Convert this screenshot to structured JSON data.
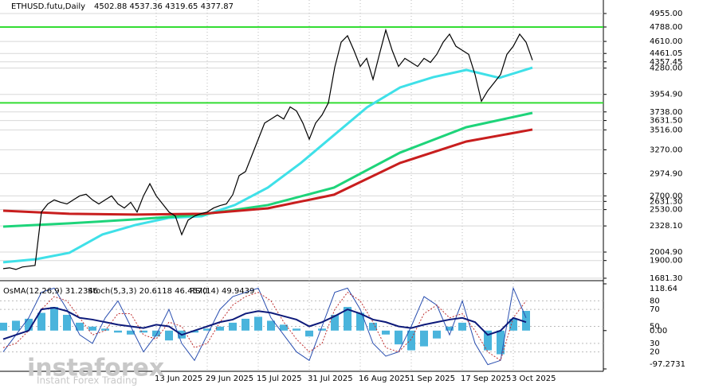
{
  "chart_data": [
    {
      "type": "line",
      "title": "ETHUSD.futu,Daily",
      "subtitle": "4502.88 4537.36 4319.65 4377.87",
      "categories": [
        null,
        null,
        null,
        null,
        null,
        null,
        null,
        null,
        null,
        null,
        null,
        null,
        null,
        null,
        null,
        null,
        null,
        null,
        null,
        null,
        null,
        null,
        null,
        null,
        "13 Jun 2025",
        null,
        null,
        null,
        null,
        null,
        null,
        null,
        "29 Jun 2025",
        null,
        null,
        null,
        null,
        null,
        null,
        null,
        "15 Jul 2025",
        null,
        null,
        null,
        null,
        null,
        null,
        null,
        "31 Jul 2025",
        null,
        null,
        null,
        null,
        null,
        null,
        null,
        "16 Aug 2025",
        null,
        null,
        null,
        null,
        null,
        null,
        null,
        "1 Sep 2025",
        null,
        null,
        null,
        null,
        null,
        null,
        null,
        "17 Sep 2025",
        null,
        null,
        null,
        null,
        null,
        null,
        null,
        "3 Oct 2025",
        null,
        null,
        null
      ],
      "series": [
        {
          "color": "#000000",
          "values": [
            1800,
            1810,
            1790,
            1820,
            1830,
            1840,
            2500,
            2600,
            2650,
            2620,
            2600,
            2650,
            2700,
            2720,
            2650,
            2600,
            2650,
            2700,
            2600,
            2550,
            2620,
            2500,
            2700,
            2850,
            2700,
            2600,
            2500,
            2450,
            2220,
            2400,
            2450,
            2480,
            2500,
            2550,
            2580,
            2600,
            2714,
            2950,
            3000,
            3200,
            3400,
            3600,
            3650,
            3700,
            3650,
            3800,
            3750,
            3600,
            3400,
            3600,
            3700,
            3850,
            4290,
            4600,
            4680,
            4500,
            4300,
            4400,
            4140,
            4450,
            4750,
            4500,
            4300,
            4400,
            4350,
            4300,
            4400,
            4350,
            4450,
            4600,
            4700,
            4550,
            4500,
            4450,
            4200,
            3870,
            4000,
            4100,
            4200,
            4450,
            4550,
            4700,
            4600,
            4377.87
          ]
        }
      ],
      "moving_averages": [
        {
          "color": "#3fe0e8",
          "values": [
            1878,
            1917,
            1996,
            2222,
            2340,
            2428,
            2448,
            2586,
            2802,
            3107,
            3451,
            3795,
            4041,
            4168,
            4257,
            4159,
            4286
          ]
        },
        {
          "color": "#1ed47a",
          "values": [
            2320,
            2360,
            2409,
            2468,
            2586,
            2802,
            3235,
            3549,
            3726
          ]
        },
        {
          "color": "#c81e1e",
          "values": [
            2517,
            2478,
            2468,
            2478,
            2546,
            2714,
            3107,
            3372,
            3520
          ]
        }
      ],
      "levels": [
        4788,
        3850
      ],
      "level_color": "#33dd33",
      "ylim": [
        1661,
        5122
      ],
      "yticks": [
        {
          "value": 4955,
          "label": "4955.00"
        },
        {
          "value": 4788,
          "label": "4788.00"
        },
        {
          "value": 4610,
          "label": "4610.00"
        },
        {
          "value": 4461.05,
          "label": "4461.05"
        },
        {
          "value": 4357.45,
          "label": "4357.45"
        },
        {
          "value": 4280,
          "label": "4280.00"
        },
        {
          "value": 3954.9,
          "label": "3954.90"
        },
        {
          "value": 3738,
          "label": "3738.00"
        },
        {
          "value": 3631.5,
          "label": "3631.50"
        },
        {
          "value": 3516,
          "label": "3516.00"
        },
        {
          "value": 3270,
          "label": "3270.00"
        },
        {
          "value": 2974.9,
          "label": "2974.90"
        },
        {
          "value": 2700,
          "label": "2700.00"
        },
        {
          "value": 2631.3,
          "label": "2631.30"
        },
        {
          "value": 2530,
          "label": "2530.00"
        },
        {
          "value": 2328.1,
          "label": "2328.10"
        },
        {
          "value": 2004.9,
          "label": "2004.90"
        },
        {
          "value": 1900,
          "label": "1900.00"
        },
        {
          "value": 1681.3,
          "label": "1681.30"
        }
      ],
      "grid": true
    },
    {
      "type": "oscillator",
      "series": [
        {
          "name": "OsMA(12,26,9) 31.2346",
          "color": "#4ab4dc",
          "axis": "y2",
          "values": [
            20,
            25,
            30,
            45,
            60,
            40,
            20,
            10,
            5,
            -5,
            -10,
            -5,
            -15,
            -25,
            -20,
            -5,
            5,
            10,
            20,
            30,
            35,
            25,
            15,
            5,
            -15,
            5,
            40,
            60,
            45,
            20,
            -10,
            -35,
            -50,
            -40,
            -20,
            10,
            20,
            0,
            -50,
            -60,
            30,
            50
          ]
        },
        {
          "name": "Stoch(5,3,3) 20.6118 46.4570",
          "color": "#2a4fb0",
          "values": [
            20,
            40,
            60,
            90,
            95,
            70,
            40,
            30,
            60,
            80,
            50,
            20,
            40,
            70,
            30,
            10,
            40,
            70,
            85,
            90,
            95,
            60,
            40,
            20,
            10,
            50,
            90,
            95,
            70,
            30,
            15,
            20,
            50,
            85,
            75,
            40,
            80,
            30,
            5,
            10,
            95,
            60
          ]
        },
        {
          "color": "#c03030",
          "dashed": true,
          "values": [
            25,
            30,
            45,
            70,
            85,
            80,
            60,
            40,
            45,
            65,
            65,
            40,
            35,
            55,
            50,
            25,
            30,
            55,
            75,
            85,
            90,
            80,
            55,
            35,
            20,
            30,
            70,
            90,
            80,
            55,
            25,
            20,
            35,
            65,
            75,
            60,
            65,
            45,
            20,
            10,
            60,
            80
          ]
        },
        {
          "name": "RSI(14) 49.9439",
          "color": "#0d1a7a",
          "values": [
            35,
            40,
            45,
            70,
            72,
            68,
            60,
            58,
            55,
            52,
            50,
            48,
            52,
            50,
            40,
            45,
            50,
            55,
            58,
            65,
            68,
            66,
            62,
            58,
            50,
            55,
            62,
            70,
            65,
            58,
            55,
            50,
            48,
            52,
            55,
            58,
            60,
            55,
            40,
            45,
            60,
            55
          ]
        }
      ],
      "ylim": [
        0,
        100
      ],
      "yticks": [
        80,
        70,
        50,
        30,
        20
      ],
      "y2lim": [
        -97.2731,
        118.64
      ],
      "y2ticks": [
        118.64,
        {
          "value": 0,
          "label": "0.00"
        },
        -97.2731
      ]
    }
  ],
  "watermark": {
    "brand": "instaforex",
    "tagline": "Instant Forex Trading"
  }
}
